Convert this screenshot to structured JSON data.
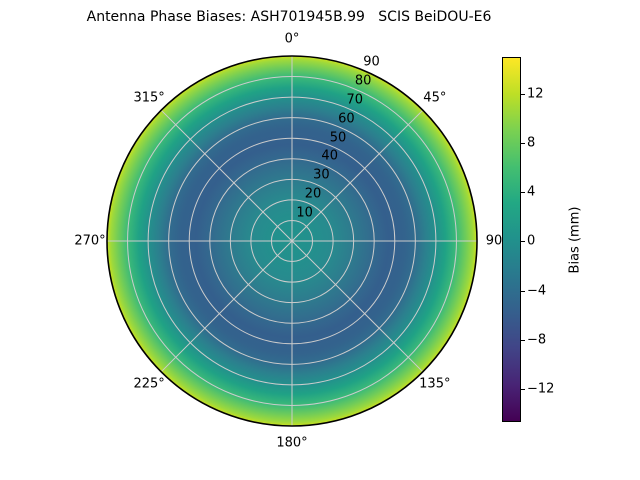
{
  "title": "Antenna Phase Biases: ASH701945B.99   SCIS BeiDOU-E6",
  "colors": {
    "background": "#ffffff",
    "grid": "#cccccc",
    "outline": "#000000",
    "text": "#000000"
  },
  "chart_data": {
    "type": "heatmap",
    "projection": "polar",
    "title": "Antenna Phase Biases: ASH701945B.99   SCIS BeiDOU-E6",
    "description": "Radially symmetric filled-contour map of antenna phase bias versus zenith angle (radial axis, degrees) and azimuth (angular axis, degrees).",
    "theta_ticks": [
      {
        "deg": 0,
        "label": "0°"
      },
      {
        "deg": 45,
        "label": "45°"
      },
      {
        "deg": 90,
        "label": "90"
      },
      {
        "deg": 135,
        "label": "135°"
      },
      {
        "deg": 180,
        "label": "180°"
      },
      {
        "deg": 225,
        "label": "225°"
      },
      {
        "deg": 270,
        "label": "270°"
      },
      {
        "deg": 315,
        "label": "315°"
      }
    ],
    "r_ticks": [
      {
        "deg": 10,
        "label": "10"
      },
      {
        "deg": 20,
        "label": "20"
      },
      {
        "deg": 30,
        "label": "30"
      },
      {
        "deg": 40,
        "label": "40"
      },
      {
        "deg": 50,
        "label": "50"
      },
      {
        "deg": 60,
        "label": "60"
      },
      {
        "deg": 70,
        "label": "70"
      },
      {
        "deg": 80,
        "label": "80"
      },
      {
        "deg": 90,
        "label": "90"
      }
    ],
    "r_max_deg": 90,
    "r_label_azimuth_deg": 24,
    "grid": true,
    "radial_profile": {
      "zenith_deg": [
        0,
        10,
        20,
        30,
        40,
        47,
        55,
        60,
        65,
        70,
        75,
        80,
        85,
        88,
        90
      ],
      "bias_mm": [
        0.2,
        -0.3,
        -1.5,
        -3.3,
        -5.0,
        -5.8,
        -5.3,
        -4.2,
        -2.2,
        0.2,
        1.9,
        5.0,
        8.0,
        10.6,
        12.6
      ]
    },
    "fill_gradient": [
      {
        "pos": 0.0,
        "color": "#21928c"
      },
      {
        "pos": 0.11,
        "color": "#23908d"
      },
      {
        "pos": 0.22,
        "color": "#288a8e"
      },
      {
        "pos": 0.33,
        "color": "#2e7b8e"
      },
      {
        "pos": 0.44,
        "color": "#336a8e"
      },
      {
        "pos": 0.52,
        "color": "#345f8d"
      },
      {
        "pos": 0.61,
        "color": "#33638d"
      },
      {
        "pos": 0.67,
        "color": "#316d8e"
      },
      {
        "pos": 0.72,
        "color": "#2c7f8e"
      },
      {
        "pos": 0.78,
        "color": "#23918c"
      },
      {
        "pos": 0.83,
        "color": "#20a285"
      },
      {
        "pos": 0.89,
        "color": "#3cba78"
      },
      {
        "pos": 0.94,
        "color": "#70cc59"
      },
      {
        "pos": 0.978,
        "color": "#9dd93c"
      },
      {
        "pos": 1.0,
        "color": "#c9e01f"
      }
    ],
    "colorbar": {
      "label": "Bias (mm)",
      "colormap": "viridis",
      "vmin": -14.7,
      "vmax": 15.0,
      "ticks": [
        {
          "value": 12,
          "label": "12"
        },
        {
          "value": 8,
          "label": "8"
        },
        {
          "value": 4,
          "label": "4"
        },
        {
          "value": 0,
          "label": "0"
        },
        {
          "value": -4,
          "label": "−4"
        },
        {
          "value": -8,
          "label": "−8"
        },
        {
          "value": -12,
          "label": "−12"
        }
      ],
      "colormap_stops": [
        "#440154",
        "#482475",
        "#414487",
        "#355f8d",
        "#2a788e",
        "#21918c",
        "#22a884",
        "#44bf70",
        "#7ad151",
        "#bddf26",
        "#fde725"
      ]
    }
  }
}
